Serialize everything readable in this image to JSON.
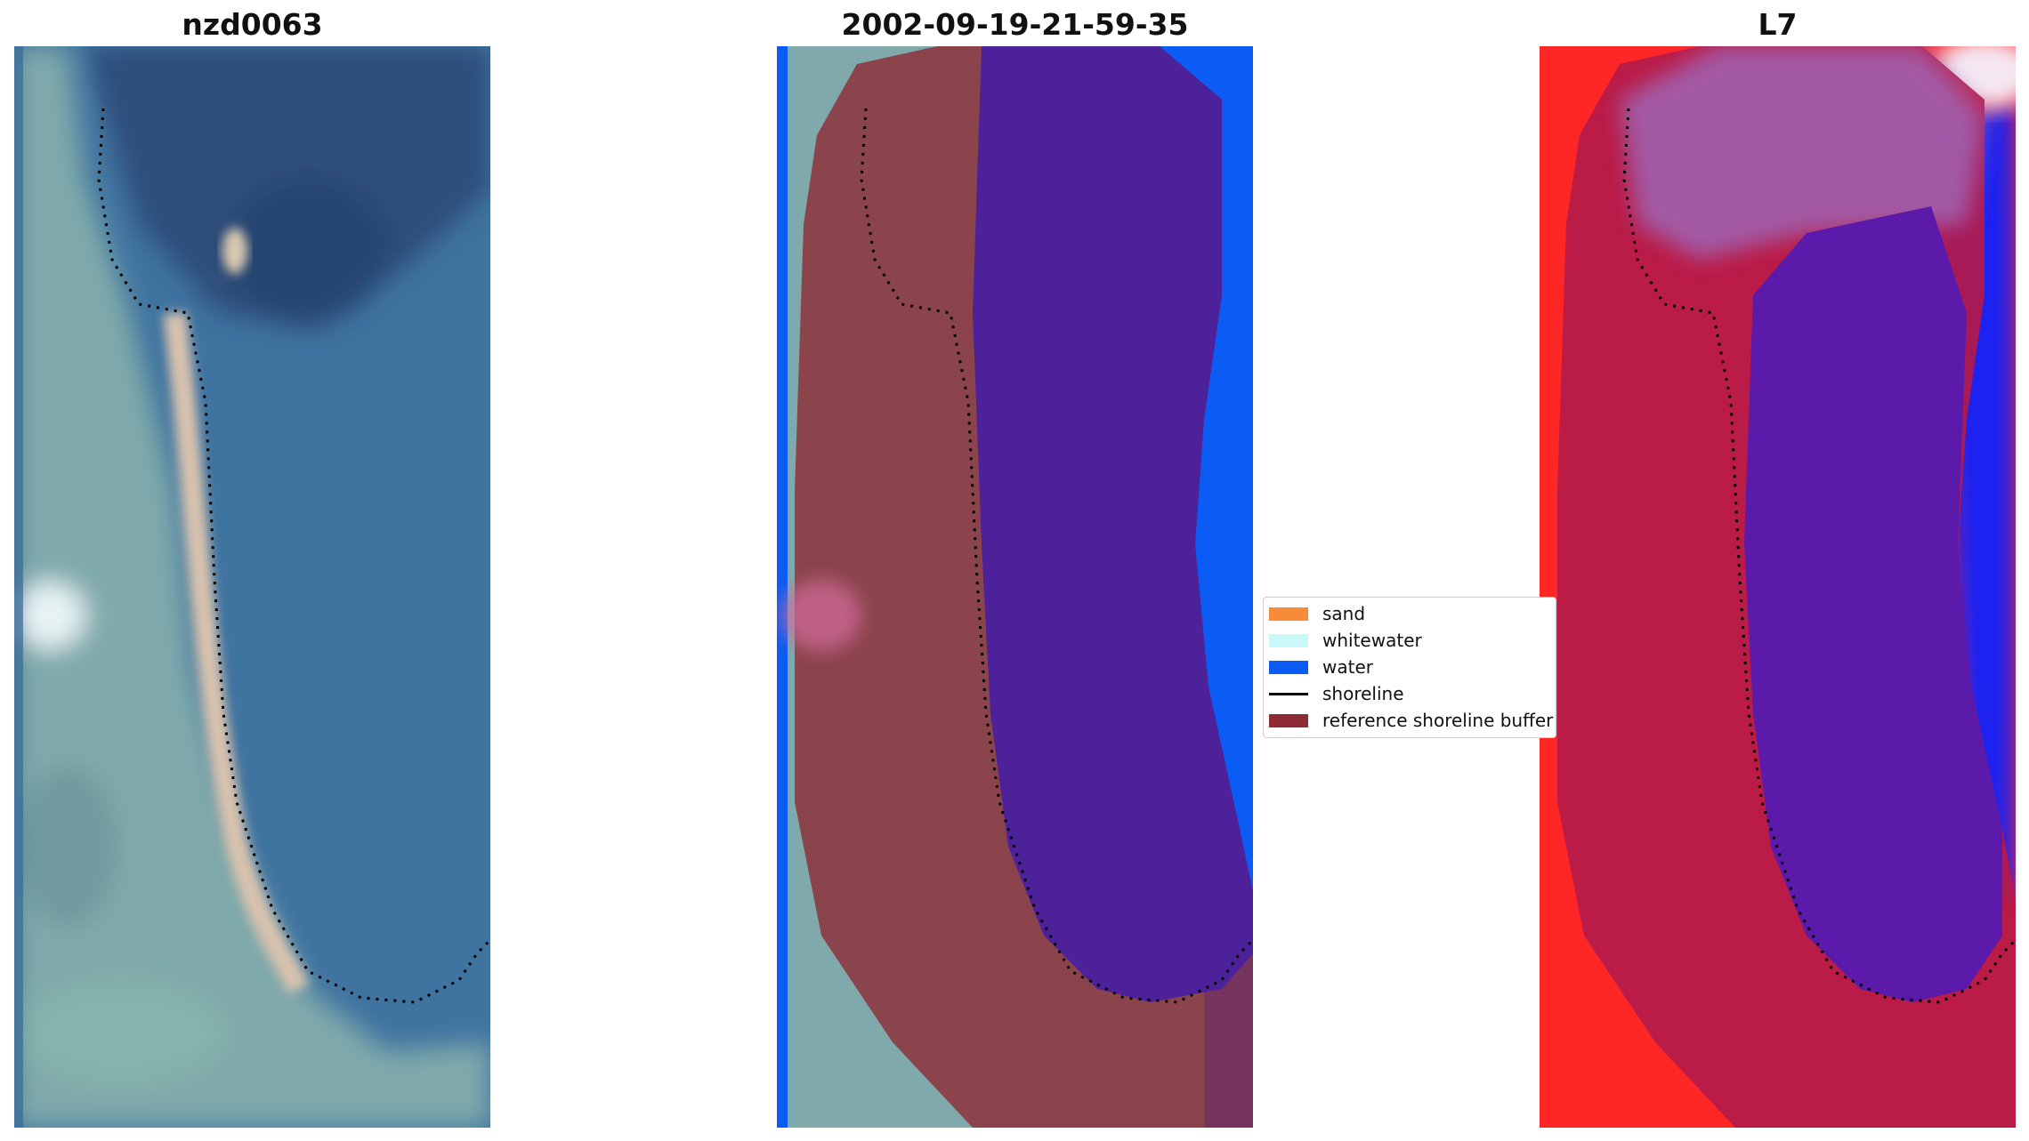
{
  "panels": [
    {
      "title": "nzd0063",
      "kind": "rgb"
    },
    {
      "title": "2002-09-19-21-59-35",
      "kind": "classified"
    },
    {
      "title": "L7",
      "kind": "mndwi"
    }
  ],
  "legend": {
    "items": [
      {
        "label": "sand",
        "color": "#f88b3a",
        "type": "patch"
      },
      {
        "label": "whitewater",
        "color": "#c8f8f8",
        "type": "patch"
      },
      {
        "label": "water",
        "color": "#0a5cf5",
        "type": "patch"
      },
      {
        "label": "shoreline",
        "color": "#000000",
        "type": "line"
      },
      {
        "label": "reference shoreline buffer",
        "color": "#8e2a35",
        "type": "patch"
      }
    ]
  },
  "colors": {
    "rgb_water_deep": "#2d4d7a",
    "rgb_water": "#3f73a0",
    "rgb_land": "#7fa9aa",
    "rgb_sand": "#dcc2ad",
    "classified_water": "#0a5cf5",
    "classified_buffer": "#8e2a35",
    "mndwi_red": "#ff2626",
    "mndwi_blue": "#1b22f0"
  }
}
